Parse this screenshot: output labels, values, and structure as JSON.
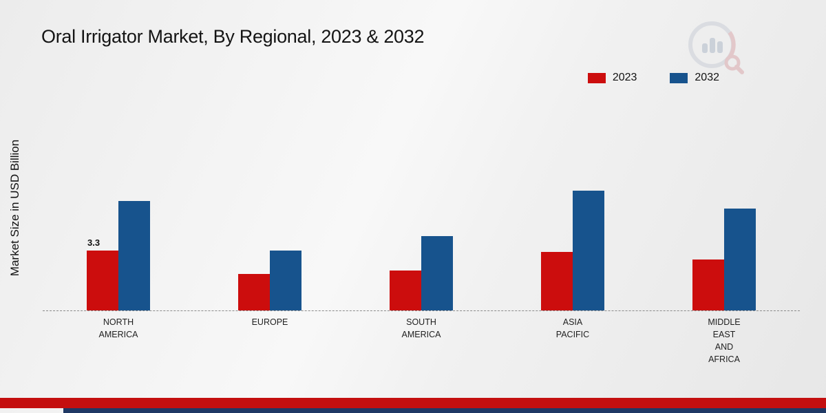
{
  "title": "Oral Irrigator Market, By Regional, 2023 & 2032",
  "y_axis_label": "Market Size in USD Billion",
  "legend": [
    {
      "label": "2023",
      "color": "#cc0d0d"
    },
    {
      "label": "2032",
      "color": "#17538d"
    }
  ],
  "footer": {
    "red_band_color": "#c40f0f",
    "navy_band_color": "#1f3864"
  },
  "chart_data": {
    "type": "bar",
    "title": "Oral Irrigator Market, By Regional, 2023 & 2032",
    "xlabel": "",
    "ylabel": "Market Size in USD Billion",
    "ylim": [
      0,
      7
    ],
    "grid": false,
    "legend_position": "top-right",
    "categories": [
      "NORTH\nAMERICA",
      "EUROPE",
      "SOUTH\nAMERICA",
      "ASIA\nPACIFIC",
      "MIDDLE\nEAST\nAND\nAFRICA"
    ],
    "series": [
      {
        "name": "2023",
        "color": "#cc0d0d",
        "values": [
          3.3,
          2.0,
          2.2,
          3.2,
          2.8
        ]
      },
      {
        "name": "2032",
        "color": "#17538d",
        "values": [
          6.0,
          3.3,
          4.1,
          6.6,
          5.6
        ]
      }
    ],
    "annotations": [
      {
        "category_index": 0,
        "series": "2023",
        "text": "3.3"
      }
    ]
  }
}
